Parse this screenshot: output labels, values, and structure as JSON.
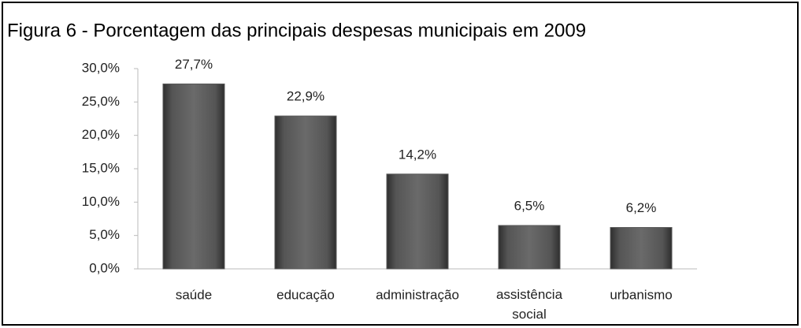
{
  "chart_data": {
    "type": "bar",
    "title": "Figura 6 - Porcentagem das principais despesas municipais em 2009",
    "categories": [
      "saúde",
      "educação",
      "administração",
      "assistência social",
      "urbanismo"
    ],
    "values": [
      27.7,
      22.9,
      14.2,
      6.5,
      6.2
    ],
    "value_labels": [
      "27,7%",
      "22,9%",
      "14,2%",
      "6,5%",
      "6,2%"
    ],
    "color": "#5a5a5a",
    "ylim": [
      0,
      30
    ],
    "yticks": [
      {
        "value": 0,
        "label": "0,0%"
      },
      {
        "value": 5,
        "label": "5,0%"
      },
      {
        "value": 10,
        "label": "10,0%"
      },
      {
        "value": 15,
        "label": "15,0%"
      },
      {
        "value": 20,
        "label": "20,0%"
      },
      {
        "value": 25,
        "label": "25,0%"
      },
      {
        "value": 30,
        "label": "30,0%"
      }
    ],
    "grid": false
  }
}
